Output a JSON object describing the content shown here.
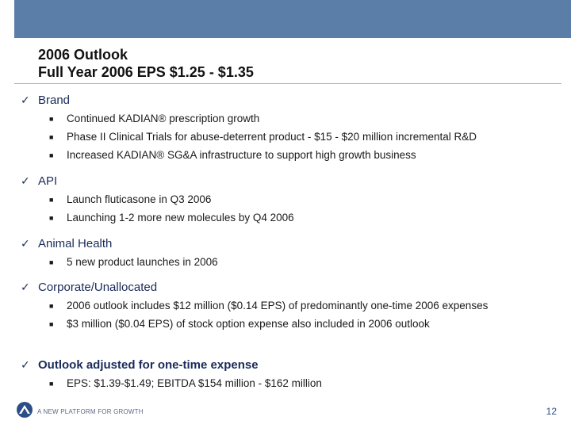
{
  "title": {
    "line1": "2006 Outlook",
    "line2": "Full Year 2006 EPS $1.25 - $1.35"
  },
  "sections": [
    {
      "label": "Brand",
      "bullets": [
        "Continued KADIAN® prescription growth",
        "Phase II Clinical Trials for abuse-deterrent product - $15 - $20 million incremental R&D",
        "Increased KADIAN® SG&A infrastructure to support high growth business"
      ]
    },
    {
      "label": "API",
      "bullets": [
        "Launch fluticasone in Q3 2006",
        "Launching 1-2 more new molecules by Q4 2006"
      ]
    },
    {
      "label": "Animal Health",
      "bullets": [
        "5 new product launches in 2006"
      ]
    },
    {
      "label": "Corporate/Unallocated",
      "bullets": [
        "2006 outlook includes $12 million ($0.14 EPS) of predominantly one-time 2006 expenses",
        "$3 million ($0.04 EPS) of stock option expense also included in 2006 outlook"
      ]
    },
    {
      "label": "Outlook adjusted for one-time expense",
      "bullets": [
        "EPS: $1.39-$1.49; EBITDA  $154 million - $162 million"
      ]
    }
  ],
  "footer": {
    "tagline": "A NEW PLATFORM FOR GROWTH",
    "page_number": "12"
  },
  "icons": {
    "check": "checkmark-icon",
    "bullet": "square-bullet-icon",
    "logo": "company-logo-icon"
  },
  "colors": {
    "band": "#5b7ea8",
    "heading": "#1a2b5a",
    "page_number": "#2b4f86"
  }
}
